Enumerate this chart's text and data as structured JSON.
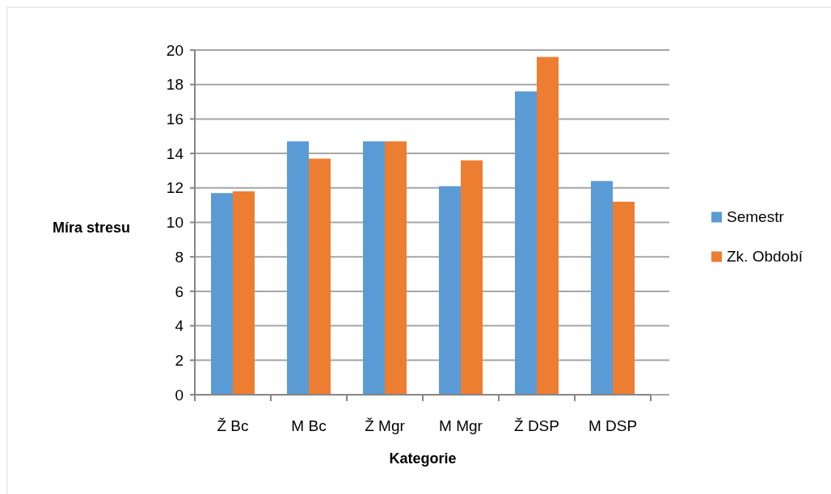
{
  "chart_data": {
    "type": "bar",
    "xlabel": "Kategorie",
    "ylabel": "Míra stresu",
    "categories": [
      "Ž Bc",
      "M Bc",
      "Ž Mgr",
      "M Mgr",
      "Ž DSP",
      "M DSP"
    ],
    "series": [
      {
        "name": "Semestr",
        "color": "#5b9bd5",
        "values": [
          11.7,
          14.7,
          14.7,
          12.1,
          17.6,
          12.4
        ]
      },
      {
        "name": "Zk. Období",
        "color": "#ed7d31",
        "values": [
          11.8,
          13.7,
          14.7,
          13.6,
          19.6,
          11.2
        ]
      }
    ],
    "ylim": [
      0,
      20
    ],
    "yticks": [
      0,
      2,
      4,
      6,
      8,
      10,
      12,
      14,
      16,
      18,
      20
    ],
    "grid": "y",
    "legend": "right"
  }
}
